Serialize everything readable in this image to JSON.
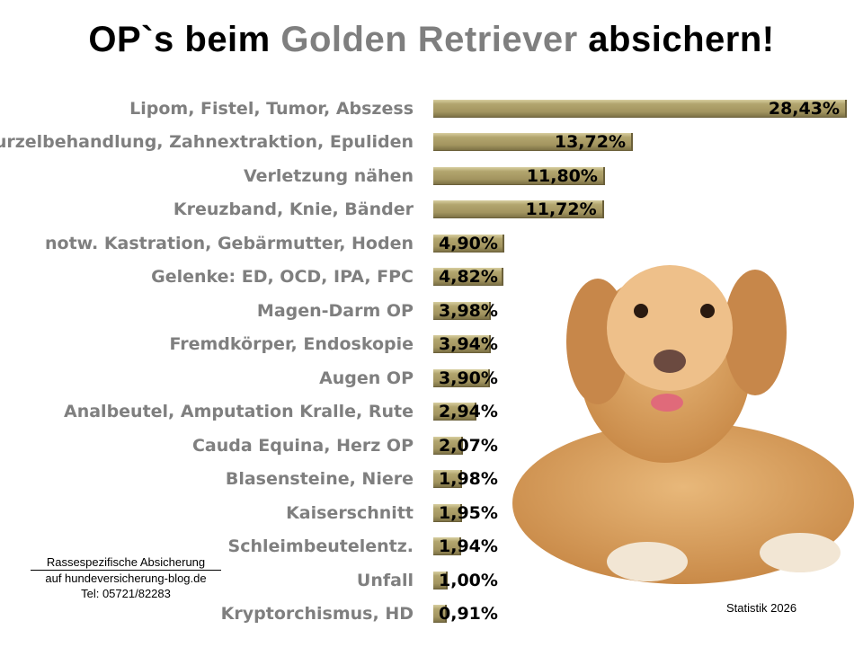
{
  "title": {
    "part1": "OP`s beim ",
    "highlight": "Golden Retriever",
    "part2": " absichern!"
  },
  "chart_data": {
    "type": "bar",
    "orientation": "horizontal",
    "categories": [
      "Lipom, Fistel, Tumor, Abszess",
      "Wurzelbehandlung, Zahnextraktion, Epuliden",
      "Verletzung nähen",
      "Kreuzband, Knie, Bänder",
      "notw. Kastration, Gebärmutter, Hoden",
      "Gelenke: ED, OCD, IPA, FPC",
      "Magen-Darm OP",
      "Fremdkörper, Endoskopie",
      "Augen OP",
      "Analbeutel, Amputation Kralle, Rute",
      "Cauda Equina, Herz OP",
      "Blasensteine, Niere",
      "Kaiserschnitt",
      "Schleimbeutelentz.",
      "Unfall",
      "Kryptorchismus, HD"
    ],
    "values": [
      28.43,
      13.72,
      11.8,
      11.72,
      4.9,
      4.82,
      3.98,
      3.94,
      3.9,
      2.94,
      2.07,
      1.98,
      1.95,
      1.94,
      1.0,
      0.91
    ],
    "data_labels": [
      "28,43%",
      "13,72%",
      "11,80%",
      "11,72%",
      "4,90%",
      "4,82%",
      "3,98%",
      "3,94%",
      "3,90%",
      "2,94%",
      "2,07%",
      "1,98%",
      "1,95%",
      "1,94%",
      "1,00%",
      "0,91%"
    ],
    "bar_color": "#a39560",
    "grid": false,
    "legend": "none"
  },
  "note": {
    "line1": "Rassespezifische  Absicherung",
    "line2": "auf hundeversicherung-blog.de",
    "line3": "Tel: 05721/82283"
  },
  "footer": "Statistik 2026",
  "image": "golden-retriever-photo"
}
